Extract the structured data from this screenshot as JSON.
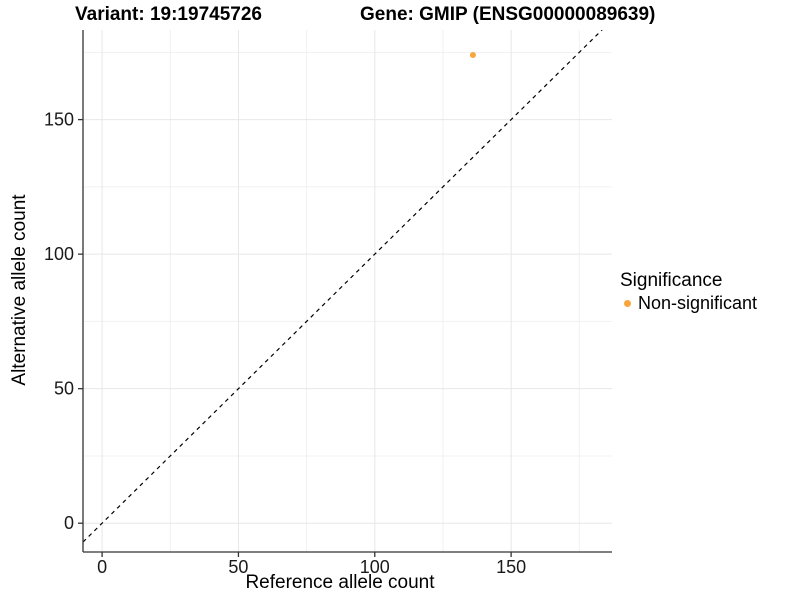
{
  "chart_data": {
    "type": "scatter",
    "title_left": "Variant: 19:19745726",
    "title_right": "Gene: GMIP (ENSG00000089639)",
    "xlabel": "Reference allele count",
    "ylabel": "Alternative allele count",
    "xlim": [
      -7,
      187
    ],
    "ylim": [
      -10.7,
      183.3
    ],
    "x_ticks": [
      0,
      50,
      100,
      150
    ],
    "y_ticks": [
      0,
      50,
      100,
      150
    ],
    "x_minor": [
      25,
      75,
      125,
      175
    ],
    "y_minor": [
      25,
      75,
      125,
      175
    ],
    "grid": true,
    "series": [
      {
        "name": "Non-significant",
        "color": "#F8A53C",
        "points": [
          [
            136,
            174
          ]
        ]
      }
    ],
    "reference_line": {
      "slope": 1,
      "intercept": 0,
      "style": "dashed",
      "color": "#000000"
    },
    "legend": {
      "title": "Significance",
      "position": "right",
      "entries": [
        {
          "label": "Non-significant",
          "color": "#F8A53C"
        }
      ]
    },
    "colors": {
      "grid_major": "#E7E7E7",
      "grid_minor": "#F1F1F1",
      "axis": "#333333",
      "tick_text": "#1A1A1A"
    }
  }
}
